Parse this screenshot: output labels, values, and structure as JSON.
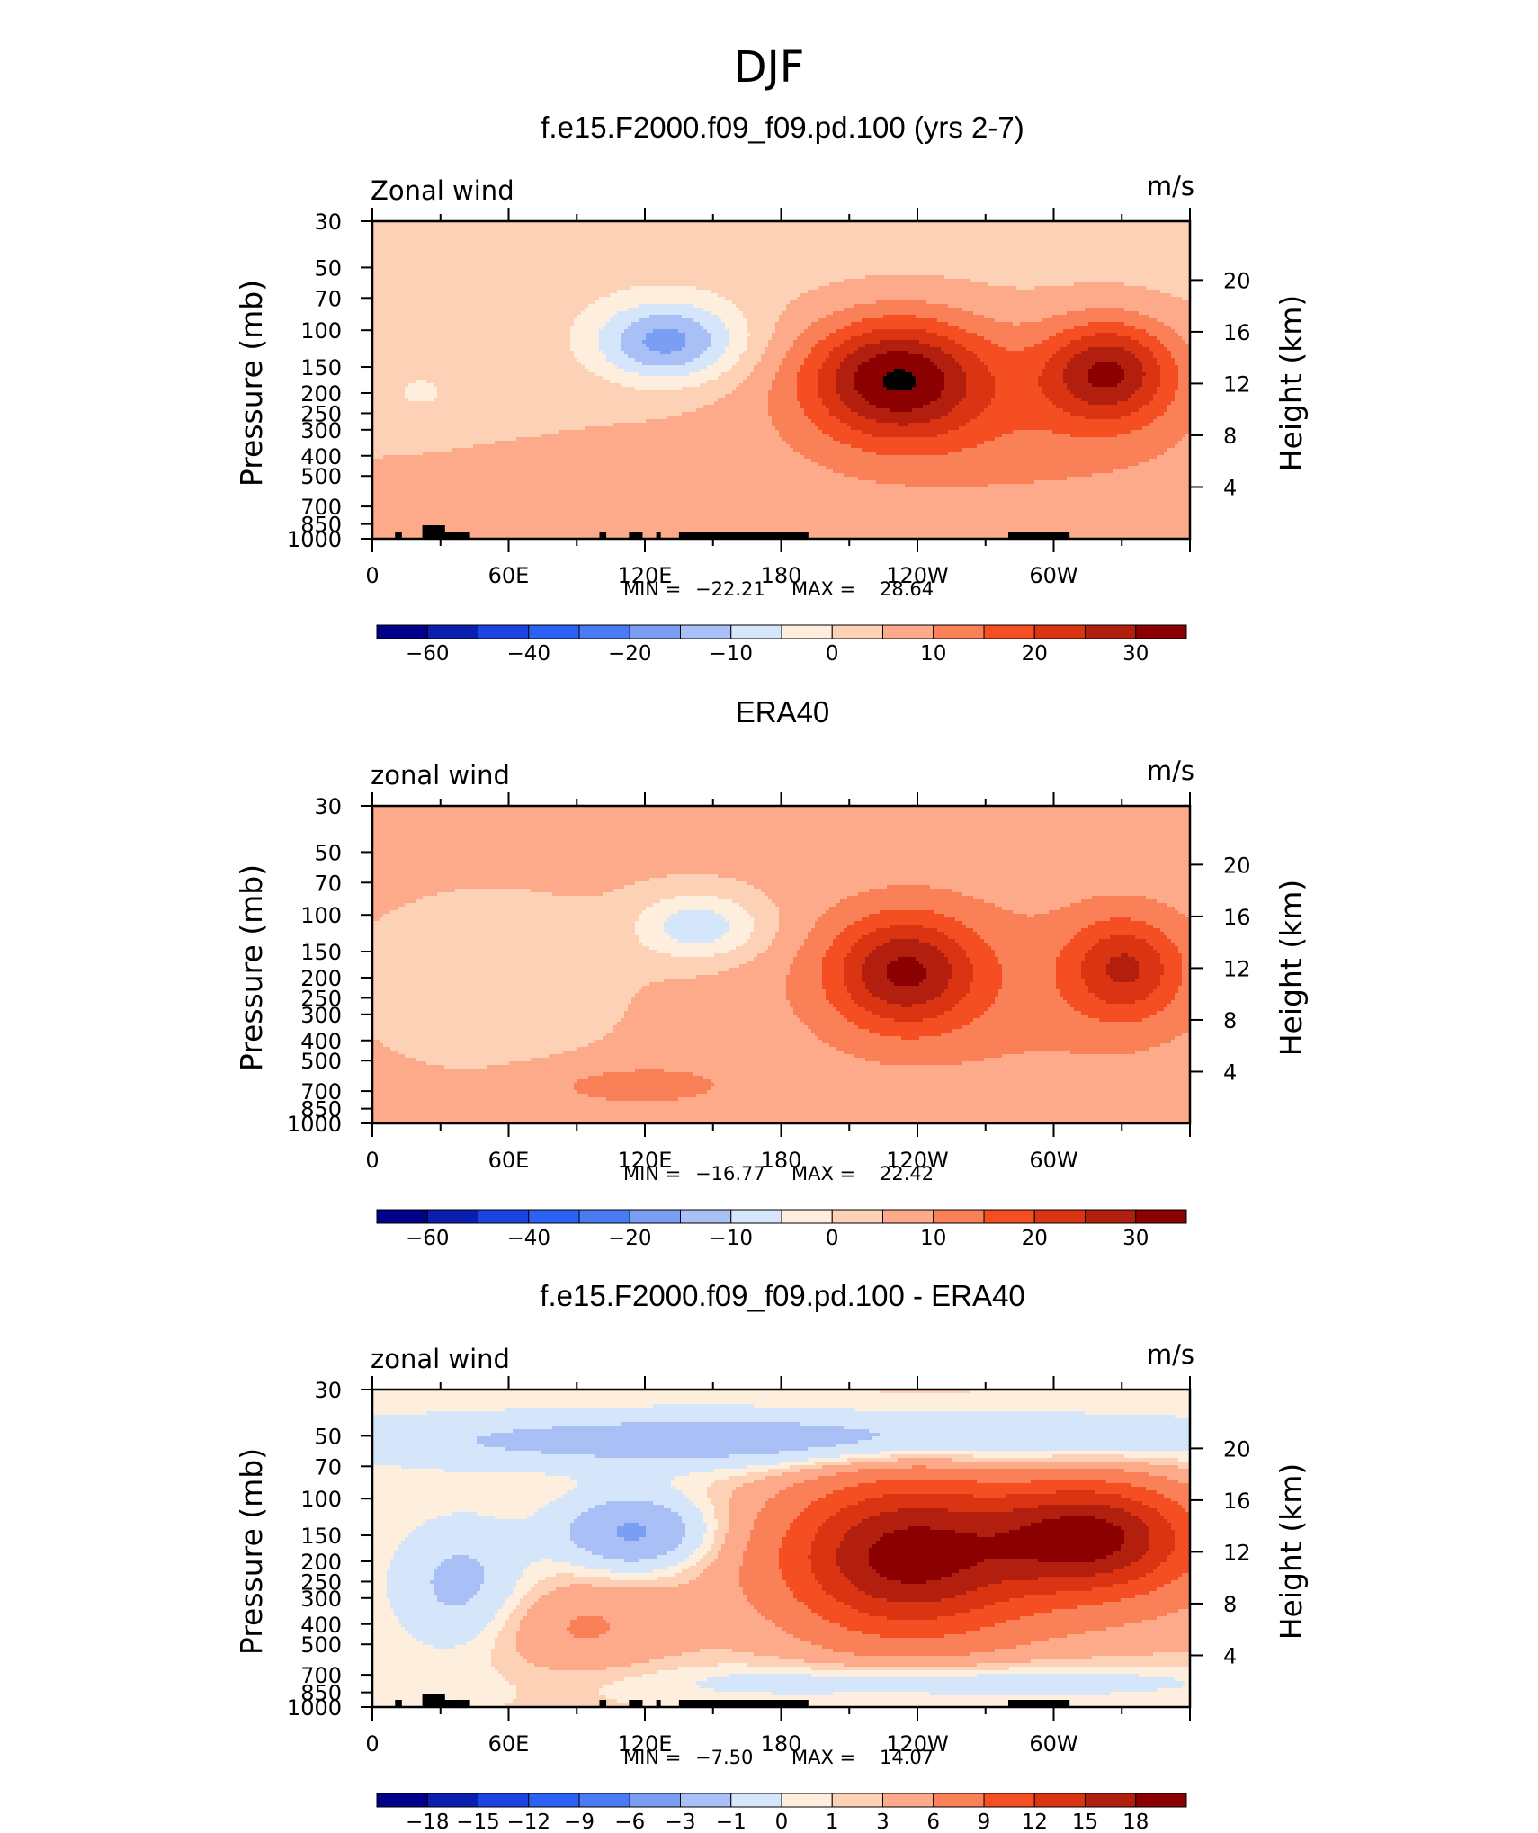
{
  "page": {
    "title": "DJF"
  },
  "colors": {
    "wind_scale": [
      "#00008b",
      "#0a1fb0",
      "#1c44e0",
      "#2b62f5",
      "#4a7bf2",
      "#7b9ef5",
      "#a9c0f7",
      "#d5e6fb",
      "#feeedd",
      "#fdd1b6",
      "#fcaa89",
      "#fa8058",
      "#f54e23",
      "#db3413",
      "#b21f0e",
      "#8b0000"
    ],
    "diff_scale": [
      "#00008b",
      "#0a1fb0",
      "#1c44e0",
      "#2b62f5",
      "#4a7bf2",
      "#7b9ef5",
      "#a9c0f7",
      "#d5e6fb",
      "#feeedd",
      "#fdd1b6",
      "#fcaa89",
      "#fa8058",
      "#f54e23",
      "#db3413",
      "#b21f0e",
      "#8b0000"
    ],
    "topography": "#000000"
  },
  "chart_data": [
    {
      "type": "heatmap",
      "title": "f.e15.F2000.f09_f09.pd.100 (yrs 2-7)",
      "left_string": "Zonal wind",
      "right_string": "m/s",
      "xlabel": "",
      "ylabel": "Pressure (mb)",
      "ylabel_right": "Height (km)",
      "x_ticks": [
        "0",
        "60E",
        "120E",
        "180",
        "120W",
        "60W"
      ],
      "y_ticks": [
        "30",
        "50",
        "70",
        "100",
        "150",
        "200",
        "250",
        "300",
        "400",
        "500",
        "700",
        "850",
        "1000"
      ],
      "y_right_ticks": [
        "4",
        "8",
        "12",
        "16",
        "20"
      ],
      "min_label": "MIN = ",
      "min": "−22.21",
      "max_label": "MAX = ",
      "max": "28.64",
      "contour_levels": [
        -70,
        -60,
        -50,
        -40,
        -30,
        -20,
        -15,
        -10,
        -5,
        0,
        5,
        10,
        15,
        20,
        25,
        30,
        35
      ],
      "colorbar_labels": [
        "−60",
        "−40",
        "−20",
        "−10",
        "0",
        "10",
        "20",
        "30"
      ],
      "field_features": [
        {
          "lon": 125,
          "p": 130,
          "value": -22.2
        },
        {
          "lon": 230,
          "p": 150,
          "value": 28.6
        },
        {
          "lon": 290,
          "p": 150,
          "value": 27
        },
        {
          "lon": 15,
          "p": 200,
          "value": -5
        }
      ]
    },
    {
      "type": "heatmap",
      "title": "ERA40",
      "left_string": "zonal wind",
      "right_string": "m/s",
      "xlabel": "",
      "ylabel": "Pressure (mb)",
      "ylabel_right": "Height (km)",
      "x_ticks": [
        "0",
        "60E",
        "120E",
        "180",
        "120W",
        "60W"
      ],
      "y_ticks": [
        "30",
        "50",
        "70",
        "100",
        "150",
        "200",
        "250",
        "300",
        "400",
        "500",
        "700",
        "850",
        "1000"
      ],
      "y_right_ticks": [
        "4",
        "8",
        "12",
        "16",
        "20"
      ],
      "min_label": "MIN = ",
      "min": "−16.77",
      "max_label": "MAX = ",
      "max": "22.42",
      "contour_levels": [
        -70,
        -60,
        -50,
        -40,
        -30,
        -20,
        -15,
        -10,
        -5,
        0,
        5,
        10,
        15,
        20,
        25,
        30,
        35
      ],
      "colorbar_labels": [
        "−60",
        "−40",
        "−20",
        "−10",
        "0",
        "10",
        "20",
        "30"
      ],
      "field_features": [
        {
          "lon": 135,
          "p": 120,
          "value": -16.8
        },
        {
          "lon": 235,
          "p": 160,
          "value": 22.4
        },
        {
          "lon": 295,
          "p": 160,
          "value": 17
        }
      ]
    },
    {
      "type": "heatmap",
      "title": "f.e15.F2000.f09_f09.pd.100 - ERA40",
      "left_string": "zonal wind",
      "right_string": "m/s",
      "xlabel": "",
      "ylabel": "Pressure (mb)",
      "ylabel_right": "Height (km)",
      "x_ticks": [
        "0",
        "60E",
        "120E",
        "180",
        "120W",
        "60W"
      ],
      "y_ticks": [
        "30",
        "50",
        "70",
        "100",
        "150",
        "200",
        "250",
        "300",
        "400",
        "500",
        "700",
        "850",
        "1000"
      ],
      "y_right_ticks": [
        "4",
        "8",
        "12",
        "16",
        "20"
      ],
      "min_label": "MIN = ",
      "min": "−7.50",
      "max_label": "MAX = ",
      "max": "14.07",
      "contour_levels": [
        -21,
        -18,
        -15,
        -12,
        -9,
        -6,
        -3,
        -1,
        0,
        1,
        3,
        6,
        9,
        12,
        15,
        18,
        21
      ],
      "colorbar_labels": [
        "−18",
        "−15",
        "−12",
        "−9",
        "−6",
        "−3",
        "−1",
        "0",
        "1",
        "3",
        "6",
        "9",
        "12",
        "15",
        "18"
      ],
      "field_features": [
        {
          "lon": 130,
          "p": 150,
          "value": -7.5
        },
        {
          "lon": 310,
          "p": 150,
          "value": 14.1
        },
        {
          "lon": 100,
          "p": 60,
          "value": -4
        }
      ]
    }
  ]
}
